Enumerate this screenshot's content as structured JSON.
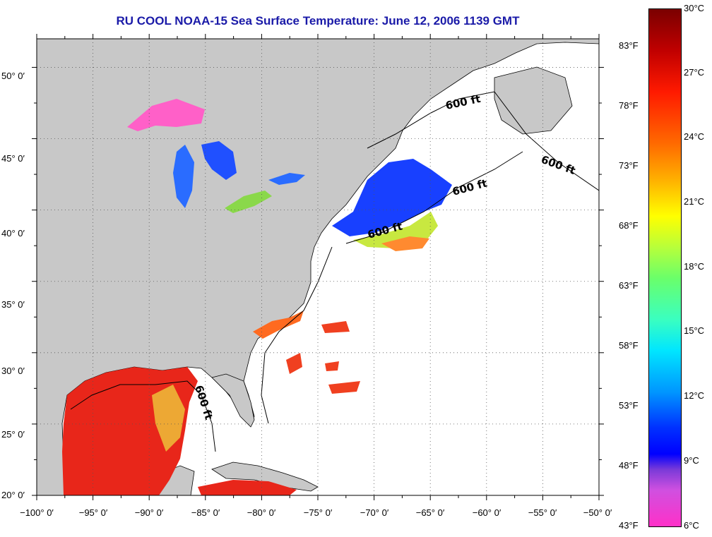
{
  "title": "RU COOL  NOAA-15  Sea Surface Temperature:  June 12, 2006 1139 GMT",
  "map": {
    "lon_range": [
      -100,
      -50
    ],
    "lat_range": [
      20,
      52
    ],
    "lon_ticks": [
      "−100° 0′",
      "−95° 0′",
      "−90° 0′",
      "−85° 0′",
      "−80° 0′",
      "−75° 0′",
      "−70° 0′",
      "−65° 0′",
      "−60° 0′",
      "−55° 0′",
      "−50° 0′"
    ],
    "lat_ticks": [
      "20° 0′",
      "25° 0′",
      "30° 0′",
      "35° 0′",
      "40° 0′",
      "45° 0′",
      "50° 0′"
    ],
    "isobath_labels": [
      "600 ft",
      "600 ft",
      "600 ft",
      "600 ft",
      "600 ft"
    ],
    "land_color": "#c8c8c8",
    "ocean_color": "#ffffff",
    "grid": "dotted"
  },
  "colorbar": {
    "celsius": [
      "30°C",
      "27°C",
      "24°C",
      "21°C",
      "18°C",
      "15°C",
      "12°C",
      "9°C",
      "6°C"
    ],
    "fahrenheit": [
      "83°F",
      "78°F",
      "73°F",
      "68°F",
      "63°F",
      "58°F",
      "53°F",
      "48°F",
      "43°F"
    ],
    "range_c": [
      6,
      30
    ],
    "range_f": [
      43,
      86
    ]
  }
}
